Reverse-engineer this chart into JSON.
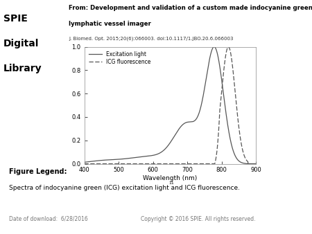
{
  "title_line1": "From: Development and validation of a custom made indocyanine green fluorescence",
  "title_line2": "lymphatic vessel imager",
  "title_journal": "J. Biomed. Opt. 2015;20(6):066003. doi:10.1117/1.JBO.20.6.066003",
  "xlabel": "Wavelength (nm)",
  "xlim": [
    400,
    900
  ],
  "ylim": [
    0,
    1
  ],
  "yticks": [
    0,
    0.2,
    0.4,
    0.6,
    0.8,
    1
  ],
  "xticks": [
    400,
    500,
    600,
    700,
    800,
    900
  ],
  "legend_excitation": "Excitation light",
  "legend_fluorescence": "ICG fluorescence",
  "figure_legend_title": "Figure Legend:",
  "figure_legend_text": "Spectra of indocyanine green (ICG) excitation light and ICG fluorescence.",
  "footer_left": "Date of download:  6/28/2016",
  "footer_right": "Copyright © 2016 SPIE. All rights reserved.",
  "bg_color": "#ffffff",
  "line_color": "#555555",
  "dashed_color": "#555555",
  "spie_red": "#cc0000"
}
